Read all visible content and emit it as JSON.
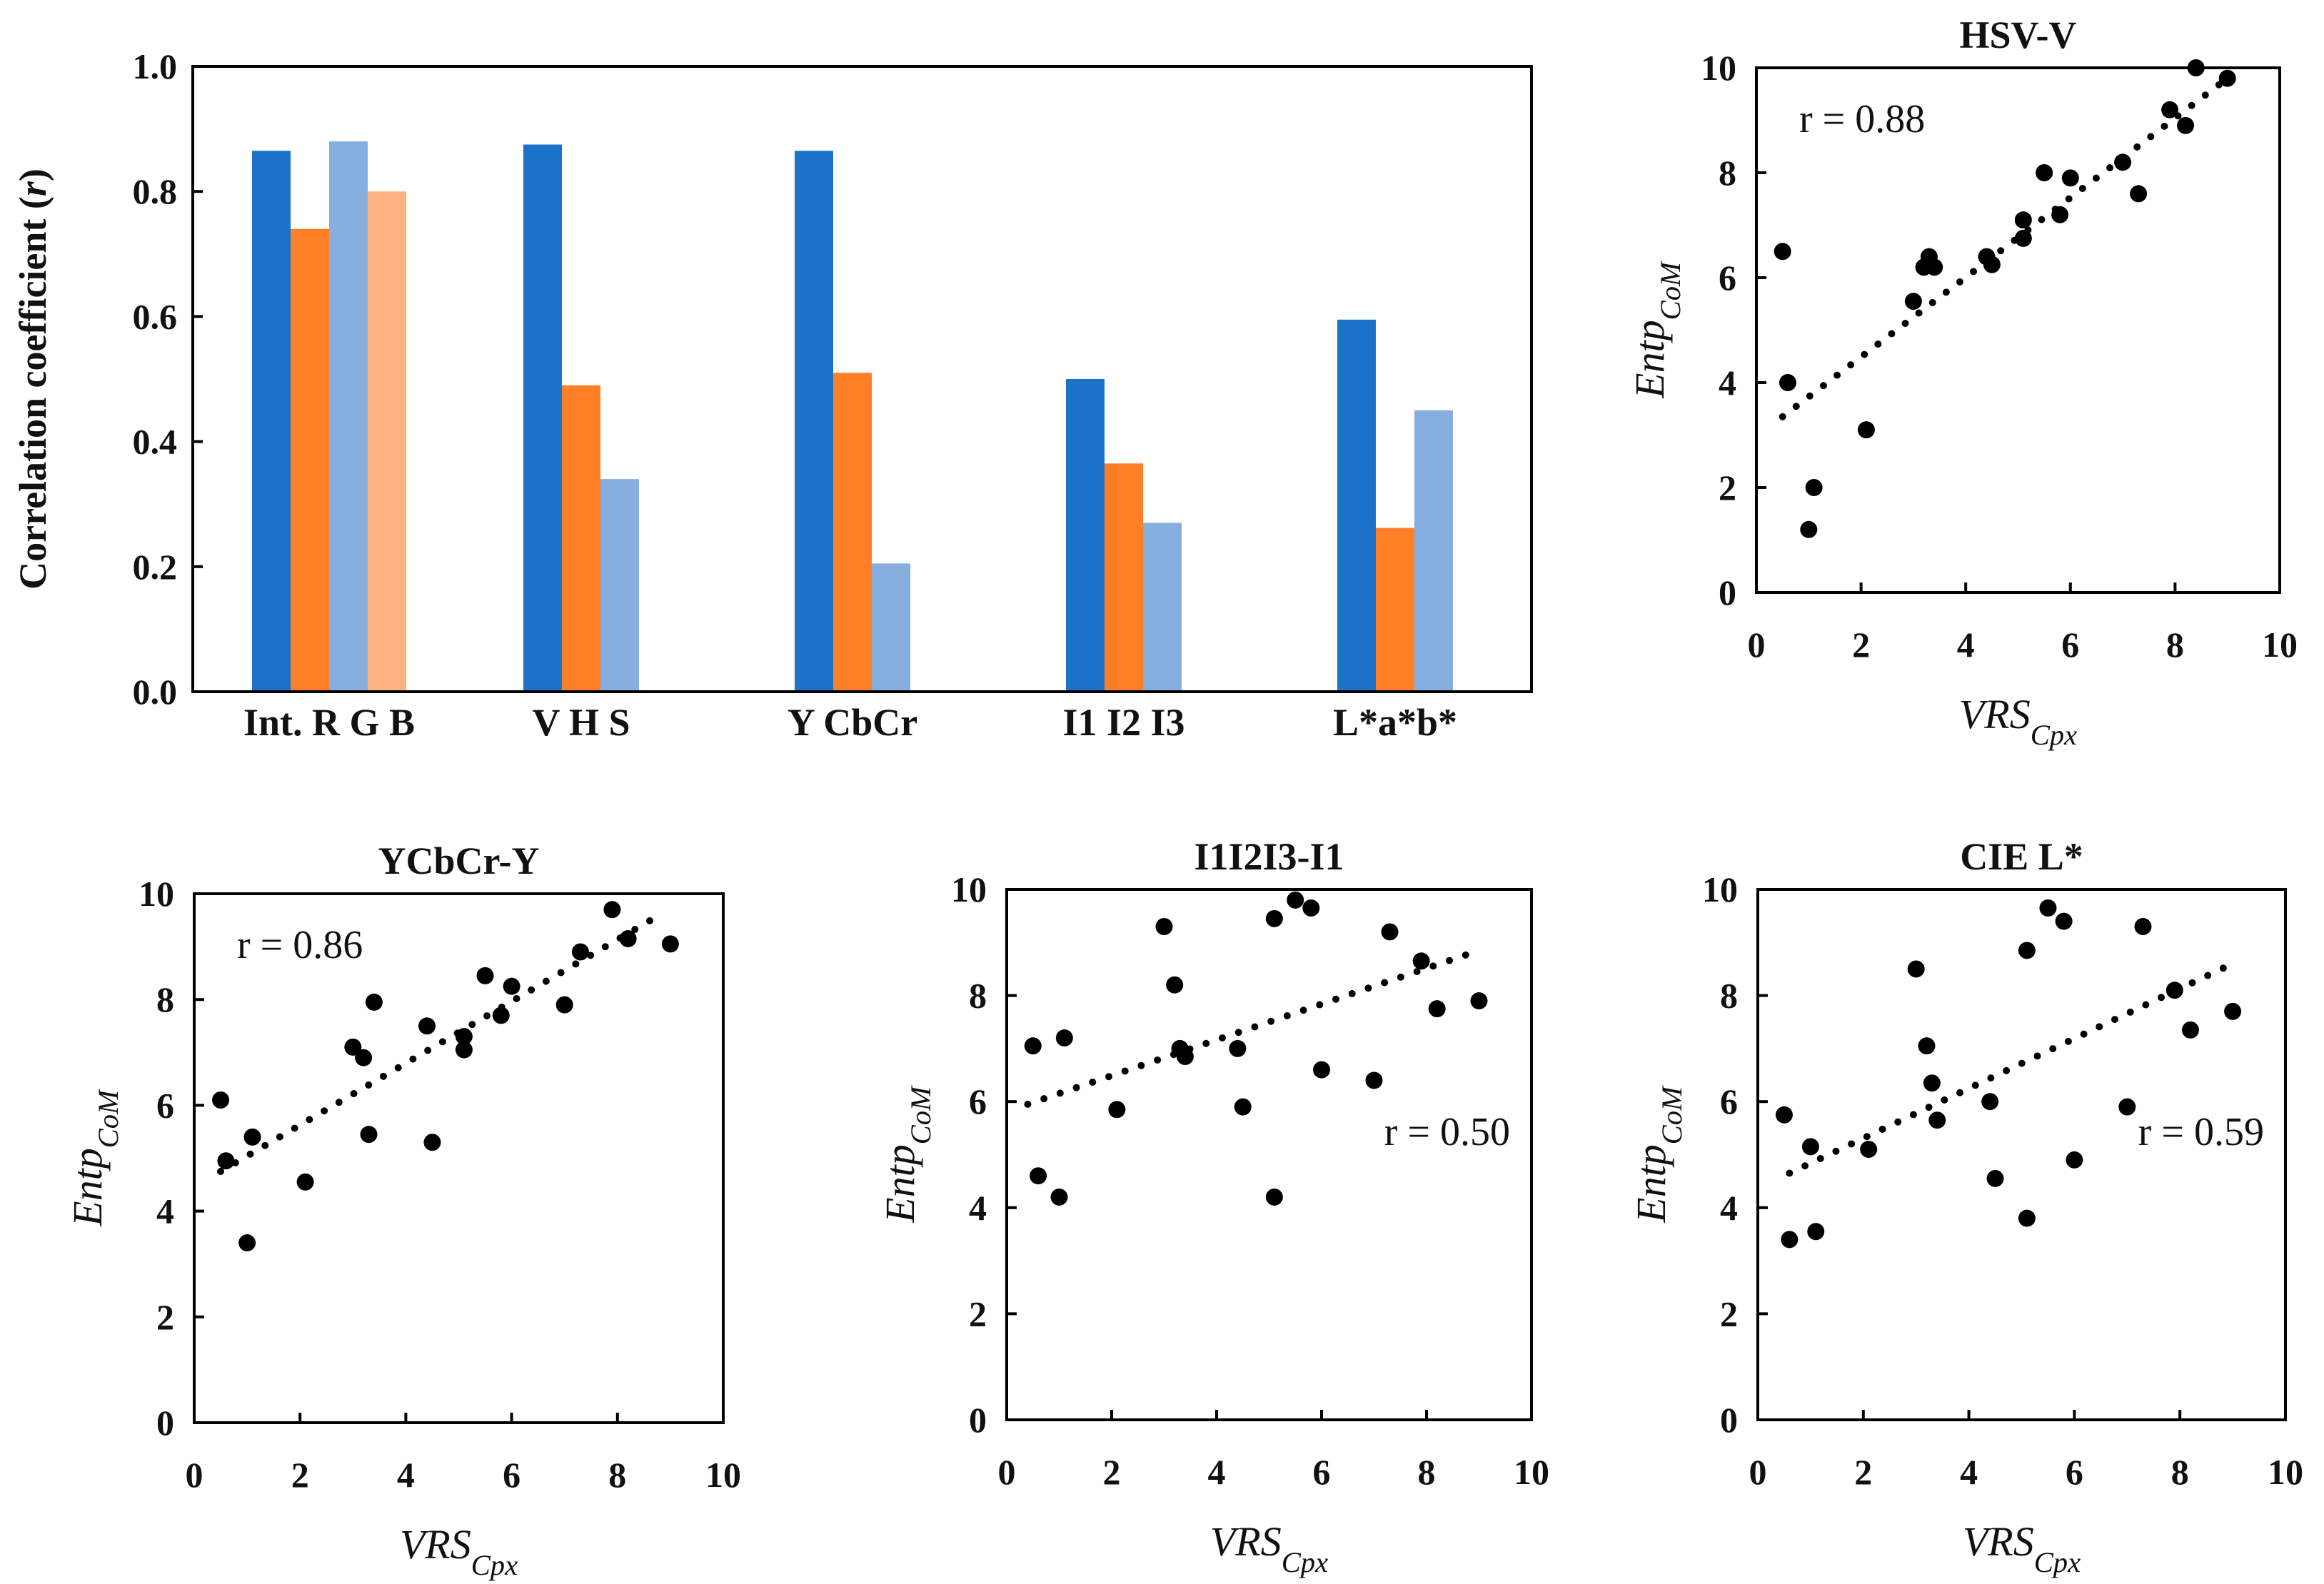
{
  "chart_data": [
    {
      "type": "bar",
      "title": "",
      "ylabel": "Correlation coefficient (r)",
      "ylabel_parts": [
        {
          "t": "Correlation coefficient ("
        },
        {
          "t": "r",
          "it": true
        },
        {
          "t": ")"
        }
      ],
      "ylim": [
        0,
        1.0
      ],
      "yticks": [
        "0.0",
        "0.2",
        "0.4",
        "0.6",
        "0.8",
        "1.0"
      ],
      "colors": [
        "#1a73c8",
        "#ff7f27",
        "#86aede",
        "#ffb380"
      ],
      "groups": [
        {
          "label": "Int. R G B",
          "label_parts": [
            {
              "t": "Int. R G B"
            }
          ],
          "values": [
            0.865,
            0.74,
            0.88,
            0.8
          ]
        },
        {
          "label": "V H S",
          "label_parts": [
            {
              "t": "V H S"
            }
          ],
          "values": [
            0.875,
            0.49,
            0.34
          ]
        },
        {
          "label": "Y CbCr",
          "label_parts": [
            {
              "t": "Y C"
            },
            {
              "t": "b",
              "sub": true
            },
            {
              "t": "C"
            },
            {
              "t": "r",
              "sub": true
            }
          ],
          "values": [
            0.865,
            0.51,
            0.205
          ]
        },
        {
          "label": "I1 I2 I3",
          "label_parts": [
            {
              "t": "I"
            },
            {
              "t": "1",
              "sub": true
            },
            {
              "t": " I"
            },
            {
              "t": "2",
              "sub": true
            },
            {
              "t": " I"
            },
            {
              "t": "3",
              "sub": true
            }
          ],
          "values": [
            0.5,
            0.365,
            0.27
          ]
        },
        {
          "label": "L*a*b*",
          "label_parts": [
            {
              "t": "L*a*b*"
            }
          ],
          "values": [
            0.595,
            0.262,
            0.45
          ]
        }
      ]
    },
    {
      "type": "scatter",
      "title": "HSV-V",
      "title_parts": [
        {
          "t": "HSV-V"
        }
      ],
      "annotation": "r = 0.88",
      "annotation_pos": "top-left",
      "xlabel": "VRSCpx",
      "ylabel": "EntpCoM",
      "xlim": [
        0,
        10
      ],
      "ylim": [
        0,
        10
      ],
      "xticks": [
        "0",
        "2",
        "4",
        "6",
        "8",
        "10"
      ],
      "yticks": [
        "0",
        "2",
        "4",
        "6",
        "8",
        "10"
      ],
      "trendline": [
        [
          0.5,
          3.35
        ],
        [
          9.0,
          9.8
        ]
      ],
      "points": [
        [
          0.5,
          6.5
        ],
        [
          0.6,
          4.0
        ],
        [
          1.0,
          1.2
        ],
        [
          1.1,
          2.0
        ],
        [
          2.1,
          3.1
        ],
        [
          3.0,
          5.55
        ],
        [
          3.2,
          6.2
        ],
        [
          3.3,
          6.4
        ],
        [
          3.4,
          6.2
        ],
        [
          4.4,
          6.4
        ],
        [
          4.5,
          6.25
        ],
        [
          5.1,
          7.1
        ],
        [
          5.1,
          6.75
        ],
        [
          5.5,
          8.0
        ],
        [
          5.8,
          7.2
        ],
        [
          6.0,
          7.9
        ],
        [
          7.0,
          8.2
        ],
        [
          7.3,
          7.6
        ],
        [
          7.9,
          9.2
        ],
        [
          8.2,
          8.9
        ],
        [
          8.4,
          10.0
        ],
        [
          9.0,
          9.8
        ]
      ]
    },
    {
      "type": "scatter",
      "title": "YCbCr-Y",
      "title_parts": [
        {
          "t": "YC"
        },
        {
          "t": "b",
          "sub": true
        },
        {
          "t": "C"
        },
        {
          "t": "r",
          "sub": true
        },
        {
          "t": "-Y"
        }
      ],
      "annotation": "r = 0.86",
      "annotation_pos": "top-left",
      "xlabel": "VRSCpx",
      "ylabel": "EntpCoM",
      "xlim": [
        0,
        10
      ],
      "ylim": [
        0,
        10
      ],
      "xticks": [
        "0",
        "2",
        "4",
        "6",
        "8",
        "10"
      ],
      "yticks": [
        "0",
        "2",
        "4",
        "6",
        "8",
        "10"
      ],
      "trendline": [
        [
          0.5,
          4.75
        ],
        [
          8.8,
          9.6
        ]
      ],
      "points": [
        [
          0.5,
          6.1
        ],
        [
          0.6,
          4.95
        ],
        [
          1.0,
          3.4
        ],
        [
          1.1,
          5.4
        ],
        [
          2.1,
          4.55
        ],
        [
          3.0,
          7.1
        ],
        [
          3.2,
          6.9
        ],
        [
          3.3,
          5.45
        ],
        [
          3.4,
          7.95
        ],
        [
          4.4,
          7.5
        ],
        [
          4.5,
          5.3
        ],
        [
          5.1,
          7.05
        ],
        [
          5.1,
          7.3
        ],
        [
          5.5,
          8.45
        ],
        [
          5.8,
          7.7
        ],
        [
          6.0,
          8.25
        ],
        [
          7.0,
          7.9
        ],
        [
          7.3,
          8.9
        ],
        [
          7.9,
          9.7
        ],
        [
          8.2,
          9.15
        ],
        [
          9.0,
          9.05
        ]
      ]
    },
    {
      "type": "scatter",
      "title": "I1I2I3-I1",
      "title_parts": [
        {
          "t": "I"
        },
        {
          "t": "1",
          "sub": true
        },
        {
          "t": "I"
        },
        {
          "t": "2",
          "sub": true
        },
        {
          "t": "I"
        },
        {
          "t": "3",
          "sub": true
        },
        {
          "t": "-I"
        },
        {
          "t": "1",
          "sub": true
        }
      ],
      "annotation": "r = 0.50",
      "annotation_pos": "bottom-right",
      "xlabel": "VRSCpx",
      "ylabel": "EntpCoM",
      "xlim": [
        0,
        10
      ],
      "ylim": [
        0,
        10
      ],
      "xticks": [
        "0",
        "2",
        "4",
        "6",
        "8",
        "10"
      ],
      "yticks": [
        "0",
        "2",
        "4",
        "6",
        "8",
        "10"
      ],
      "trendline": [
        [
          0.4,
          5.95
        ],
        [
          9.0,
          8.85
        ]
      ],
      "points": [
        [
          0.5,
          7.05
        ],
        [
          0.6,
          4.6
        ],
        [
          1.0,
          4.2
        ],
        [
          1.1,
          7.2
        ],
        [
          2.1,
          5.85
        ],
        [
          3.0,
          9.3
        ],
        [
          3.2,
          8.2
        ],
        [
          3.3,
          7.0
        ],
        [
          3.4,
          6.85
        ],
        [
          4.4,
          7.0
        ],
        [
          4.5,
          5.9
        ],
        [
          5.1,
          9.45
        ],
        [
          5.1,
          4.2
        ],
        [
          5.5,
          9.8
        ],
        [
          5.8,
          9.65
        ],
        [
          6.0,
          6.6
        ],
        [
          7.0,
          6.4
        ],
        [
          7.3,
          9.2
        ],
        [
          7.9,
          8.65
        ],
        [
          8.2,
          7.75
        ],
        [
          9.0,
          7.9
        ]
      ]
    },
    {
      "type": "scatter",
      "title": "CIE L*",
      "title_parts": [
        {
          "t": "CIE L*"
        }
      ],
      "annotation": "r = 0.59",
      "annotation_pos": "bottom-right",
      "xlabel": "VRSCpx",
      "ylabel": "EntpCoM",
      "xlim": [
        0,
        10
      ],
      "ylim": [
        0,
        10
      ],
      "xticks": [
        "0",
        "2",
        "4",
        "6",
        "8",
        "10"
      ],
      "yticks": [
        "0",
        "2",
        "4",
        "6",
        "8",
        "10"
      ],
      "trendline": [
        [
          0.6,
          4.65
        ],
        [
          9.0,
          8.6
        ]
      ],
      "points": [
        [
          0.5,
          5.75
        ],
        [
          0.6,
          3.4
        ],
        [
          1.0,
          5.15
        ],
        [
          1.1,
          3.55
        ],
        [
          2.1,
          5.1
        ],
        [
          3.0,
          8.5
        ],
        [
          3.2,
          7.05
        ],
        [
          3.3,
          6.35
        ],
        [
          3.4,
          5.65
        ],
        [
          4.4,
          6.0
        ],
        [
          4.5,
          4.55
        ],
        [
          5.1,
          8.85
        ],
        [
          5.1,
          3.8
        ],
        [
          5.5,
          9.65
        ],
        [
          5.8,
          9.4
        ],
        [
          6.0,
          4.9
        ],
        [
          7.0,
          5.9
        ],
        [
          7.3,
          9.3
        ],
        [
          7.9,
          8.1
        ],
        [
          8.2,
          7.35
        ],
        [
          9.0,
          7.7
        ]
      ]
    }
  ],
  "axis_label_parts": {
    "x": [
      {
        "t": "VRS",
        "it": true
      },
      {
        "t": "Cpx",
        "it": true,
        "sub": true
      }
    ],
    "y": [
      {
        "t": "Entp",
        "it": true
      },
      {
        "t": "CoM",
        "it": true,
        "sub": true
      }
    ]
  }
}
